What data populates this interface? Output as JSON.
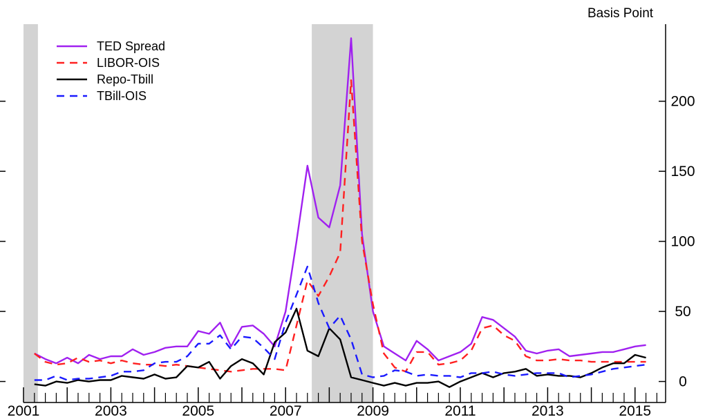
{
  "chart_data": {
    "type": "line",
    "unit_label": "Basis Point",
    "x_range": [
      2001.0,
      2015.7
    ],
    "y_range": [
      -15,
      255
    ],
    "y_ticks": [
      0,
      50,
      100,
      150,
      200
    ],
    "x_tick_labels": [
      "2001",
      "2003",
      "2005",
      "2007",
      "2009",
      "2011",
      "2013",
      "2015"
    ],
    "recessions": [
      [
        2001.0,
        2001.33
      ],
      [
        2007.6,
        2009.0
      ]
    ],
    "legend": {
      "placement": "top-left"
    },
    "series": [
      {
        "name": "TED Spread",
        "color": "#a020f0",
        "dash": "solid",
        "x": [
          2001.25,
          2001.5,
          2001.75,
          2002.0,
          2002.25,
          2002.5,
          2002.75,
          2003.0,
          2003.25,
          2003.5,
          2003.75,
          2004.0,
          2004.25,
          2004.5,
          2004.75,
          2005.0,
          2005.25,
          2005.5,
          2005.75,
          2006.0,
          2006.25,
          2006.5,
          2006.75,
          2007.0,
          2007.25,
          2007.5,
          2007.75,
          2008.0,
          2008.25,
          2008.5,
          2008.75,
          2009.0,
          2009.25,
          2009.5,
          2009.75,
          2010.0,
          2010.25,
          2010.5,
          2010.75,
          2011.0,
          2011.25,
          2011.5,
          2011.75,
          2012.0,
          2012.25,
          2012.5,
          2012.75,
          2013.0,
          2013.25,
          2013.5,
          2013.75,
          2014.0,
          2014.25,
          2014.5,
          2014.75,
          2015.0,
          2015.25
        ],
        "y": [
          20,
          16,
          13,
          17,
          13,
          19,
          16,
          18,
          18,
          23,
          19,
          21,
          24,
          25,
          25,
          36,
          34,
          42,
          25,
          39,
          40,
          34,
          25,
          50,
          100,
          154,
          117,
          110,
          140,
          245,
          105,
          50,
          25,
          20,
          15,
          29,
          23,
          15,
          18,
          21,
          27,
          46,
          44,
          38,
          32,
          22,
          20,
          22,
          23,
          18,
          19,
          20,
          21,
          21,
          23,
          25,
          26
        ]
      },
      {
        "name": "LIBOR-OIS",
        "color": "#ff2020",
        "dash": "dashed",
        "x": [
          2001.25,
          2001.5,
          2001.75,
          2002.0,
          2002.25,
          2002.5,
          2002.75,
          2003.0,
          2003.25,
          2003.5,
          2003.75,
          2004.0,
          2004.25,
          2004.5,
          2004.75,
          2005.0,
          2005.25,
          2005.5,
          2005.75,
          2006.0,
          2006.25,
          2006.5,
          2006.75,
          2007.0,
          2007.25,
          2007.5,
          2007.75,
          2008.0,
          2008.25,
          2008.5,
          2008.75,
          2009.0,
          2009.25,
          2009.5,
          2009.75,
          2010.0,
          2010.25,
          2010.5,
          2010.75,
          2011.0,
          2011.25,
          2011.5,
          2011.75,
          2012.0,
          2012.25,
          2012.5,
          2012.75,
          2013.0,
          2013.25,
          2013.5,
          2013.75,
          2014.0,
          2014.25,
          2014.5,
          2014.75,
          2015.0,
          2015.25
        ],
        "y": [
          20,
          14,
          12,
          13,
          17,
          14,
          15,
          13,
          15,
          13,
          12,
          12,
          11,
          12,
          11,
          10,
          9,
          8,
          7,
          8,
          9,
          9,
          9,
          8,
          40,
          72,
          61,
          75,
          92,
          215,
          100,
          55,
          20,
          10,
          7,
          21,
          21,
          12,
          13,
          15,
          22,
          38,
          40,
          33,
          29,
          18,
          15,
          15,
          16,
          15,
          15,
          14,
          14,
          14,
          14,
          14,
          14
        ]
      },
      {
        "name": "Repo-Tbill",
        "color": "#000000",
        "dash": "solid",
        "x": [
          2001.25,
          2001.5,
          2001.75,
          2002.0,
          2002.25,
          2002.5,
          2002.75,
          2003.0,
          2003.25,
          2003.5,
          2003.75,
          2004.0,
          2004.25,
          2004.5,
          2004.75,
          2005.0,
          2005.25,
          2005.5,
          2005.75,
          2006.0,
          2006.25,
          2006.5,
          2006.75,
          2007.0,
          2007.25,
          2007.5,
          2007.75,
          2008.0,
          2008.25,
          2008.5,
          2008.75,
          2009.0,
          2009.25,
          2009.5,
          2009.75,
          2010.0,
          2010.25,
          2010.5,
          2010.75,
          2011.0,
          2011.25,
          2011.5,
          2011.75,
          2012.0,
          2012.25,
          2012.5,
          2012.75,
          2013.0,
          2013.25,
          2013.5,
          2013.75,
          2014.0,
          2014.25,
          2014.5,
          2014.75,
          2015.0,
          2015.25
        ],
        "y": [
          -2,
          -3,
          0,
          -1,
          1,
          0,
          1,
          1,
          4,
          3,
          2,
          5,
          2,
          3,
          11,
          10,
          14,
          2,
          11,
          16,
          13,
          5,
          28,
          35,
          52,
          22,
          18,
          38,
          30,
          3,
          1,
          -1,
          -3,
          -1,
          -3,
          -1,
          -1,
          0,
          -4,
          0,
          3,
          6,
          3,
          6,
          7,
          9,
          4,
          5,
          4,
          4,
          3,
          6,
          10,
          13,
          13,
          19,
          17
        ]
      },
      {
        "name": "TBill-OIS",
        "color": "#1a1aff",
        "dash": "dashed",
        "x": [
          2001.25,
          2001.5,
          2001.75,
          2002.0,
          2002.25,
          2002.5,
          2002.75,
          2003.0,
          2003.25,
          2003.5,
          2003.75,
          2004.0,
          2004.25,
          2004.5,
          2004.75,
          2005.0,
          2005.25,
          2005.5,
          2005.75,
          2006.0,
          2006.25,
          2006.5,
          2006.75,
          2007.0,
          2007.25,
          2007.5,
          2007.75,
          2008.0,
          2008.25,
          2008.5,
          2008.75,
          2009.0,
          2009.25,
          2009.5,
          2009.75,
          2010.0,
          2010.25,
          2010.5,
          2010.75,
          2011.0,
          2011.25,
          2011.5,
          2011.75,
          2012.0,
          2012.25,
          2012.5,
          2012.75,
          2013.0,
          2013.25,
          2013.5,
          2013.75,
          2014.0,
          2014.25,
          2014.5,
          2014.75,
          2015.0,
          2015.25
        ],
        "y": [
          1,
          1,
          4,
          1,
          2,
          2,
          3,
          4,
          7,
          7,
          8,
          13,
          14,
          14,
          18,
          27,
          27,
          33,
          23,
          32,
          31,
          24,
          16,
          42,
          62,
          82,
          56,
          38,
          47,
          30,
          5,
          3,
          4,
          8,
          7,
          4,
          5,
          4,
          4,
          3,
          6,
          6,
          7,
          5,
          4,
          5,
          6,
          6,
          6,
          3,
          4,
          5,
          7,
          9,
          10,
          11,
          12
        ]
      }
    ]
  }
}
